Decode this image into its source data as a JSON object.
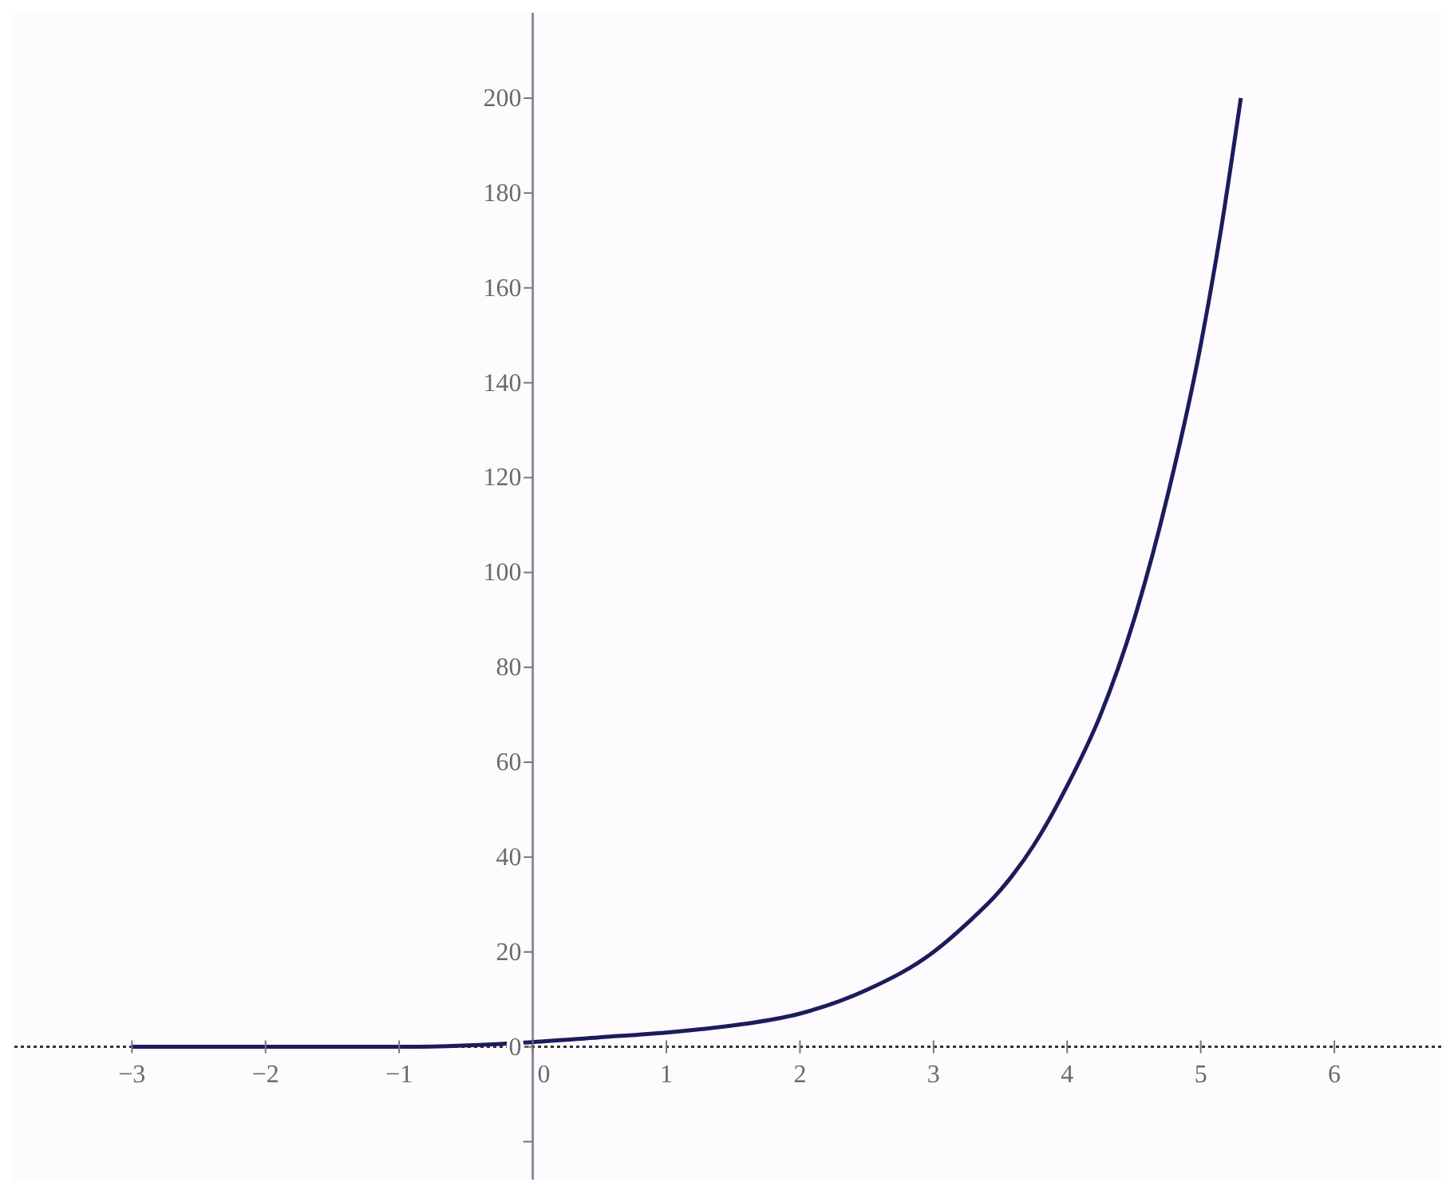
{
  "chart_data": {
    "type": "line",
    "x": [
      -3,
      -2,
      -1,
      0,
      0.5,
      1,
      1.5,
      2,
      2.5,
      3,
      3.25,
      3.5,
      3.75,
      4,
      4.25,
      4.5,
      4.75,
      5,
      5.15,
      5.3
    ],
    "series": [
      {
        "color": "#1c1c5c",
        "values": [
          0,
          0,
          0,
          1,
          2,
          3,
          4.5,
          7,
          12,
          20,
          26,
          33,
          42.5,
          55,
          70,
          90,
          116,
          148,
          172,
          200
        ]
      }
    ],
    "ref_lines": [
      {
        "axis": "y",
        "value": 0,
        "color": "#333333",
        "line_style": "dotted"
      }
    ],
    "xlim": [
      -3.88,
      6.8
    ],
    "xticks": [
      -3,
      -2,
      -1,
      0,
      1,
      2,
      3,
      4,
      5,
      6
    ],
    "ylim": [
      -28,
      218
    ],
    "yticks": [
      {
        "value": -20,
        "label": null
      },
      0,
      20,
      40,
      60,
      80,
      100,
      120,
      140,
      160,
      180,
      200
    ],
    "grid": false,
    "legend": false,
    "marker": "none",
    "line_style": "solid"
  }
}
